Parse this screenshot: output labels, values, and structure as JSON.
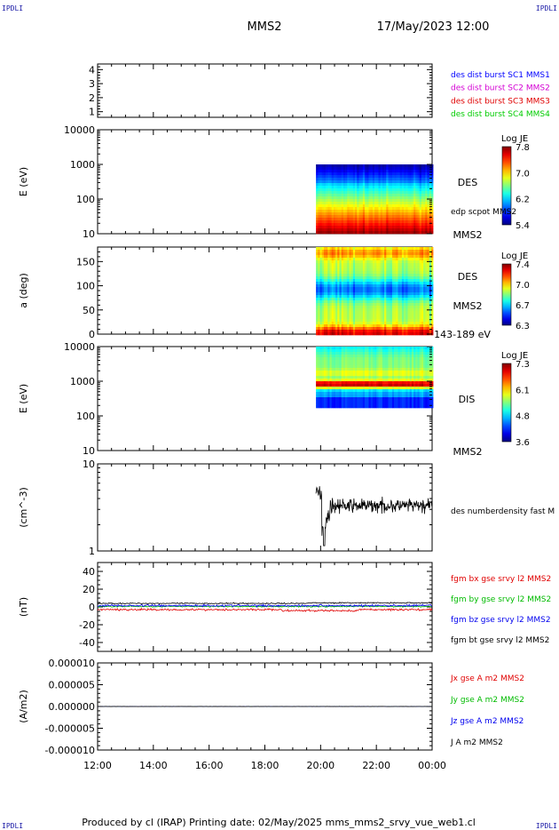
{
  "header": {
    "corner_tl": "IPDLI",
    "corner_tr": "IPDLI",
    "corner_bl": "IPDLI",
    "corner_br": "IPDLI",
    "title": "MMS2",
    "datetime": "17/May/2023 12:00"
  },
  "footer": {
    "text": "Produced by cl (IRAP)   Printing date: 02/May/2025   mms_mms2_srvy_vue_web1.cl"
  },
  "colors": {
    "mms1": "#0000ff",
    "mms2": "#d400d4",
    "mms3": "#e00000",
    "mms4": "#00cc00",
    "bx": "#e00000",
    "by": "#00bb00",
    "bz": "#0000ee",
    "bt": "#000000"
  },
  "chart_data": [
    {
      "type": "line",
      "ylim": [
        0.6,
        4.4
      ],
      "yticks": [
        "1",
        "2",
        "3",
        "4"
      ],
      "legend": [
        {
          "label": "des dist burst SC1 MMS1",
          "color": "#0000ff"
        },
        {
          "label": "des dist burst SC2 MMS2",
          "color": "#d400d4"
        },
        {
          "label": "des dist burst SC3 MMS3",
          "color": "#e00000"
        },
        {
          "label": "des dist burst SC4 MMS4",
          "color": "#00cc00"
        }
      ]
    },
    {
      "type": "heatmap",
      "ylabel": "E (eV)",
      "yticks": [
        "10",
        "100",
        "1000",
        "10000"
      ],
      "data_start": "19:50",
      "data_end": "00:00",
      "label": "DES",
      "extra_label": "edp scpot MMS2",
      "bottom_right": "MMS2",
      "colorbar": {
        "title": "Log JE",
        "ticks": [
          "7.8",
          "7.0",
          "6.2",
          "5.4"
        ]
      }
    },
    {
      "type": "heatmap",
      "ylabel": "a (deg)",
      "yticks": [
        "0",
        "50",
        "100",
        "150"
      ],
      "data_start": "19:50",
      "data_end": "00:00",
      "label": "DES",
      "label2": "MMS2",
      "bottom_right": "143-189 eV",
      "colorbar": {
        "title": "Log JE",
        "ticks": [
          "7.4",
          "7.0",
          "6.7",
          "6.3"
        ]
      }
    },
    {
      "type": "heatmap",
      "ylabel": "E (eV)",
      "yticks": [
        "10",
        "100",
        "1000",
        "10000"
      ],
      "data_start": "19:50",
      "data_end": "00:00",
      "label": "DIS",
      "bottom_right": "MMS2",
      "colorbar": {
        "title": "Log JE",
        "ticks": [
          "7.3",
          "6.1",
          "4.8",
          "3.6"
        ]
      }
    },
    {
      "type": "line",
      "ylabel": "(cm^-3)",
      "yticks": [
        "1",
        "10"
      ],
      "data_start": "19:50",
      "data_end": "00:00",
      "legend": [
        {
          "label": "des numberdensity fast M",
          "color": "#000000"
        }
      ]
    },
    {
      "type": "line",
      "ylabel": "(nT)",
      "ylim": [
        -50,
        50
      ],
      "yticks": [
        "40",
        "20",
        "0",
        "-20",
        "-40"
      ],
      "series": [
        {
          "name": "fgm bx gse srvy l2 MMS2",
          "color": "#e00000"
        },
        {
          "name": "fgm by gse srvy l2 MMS2",
          "color": "#00bb00"
        },
        {
          "name": "fgm bz gse srvy l2 MMS2",
          "color": "#0000ee"
        },
        {
          "name": "fgm bt gse srvy l2 MMS2",
          "color": "#000000"
        }
      ]
    },
    {
      "type": "line",
      "ylabel": "(A/m2)",
      "ylim": [
        -1e-05,
        1e-05
      ],
      "yticks": [
        "0.000010",
        "0.000005",
        "0.000000",
        "-0.000005",
        "-0.000010"
      ],
      "series": [
        {
          "name": "Jx gse A m2 MMS2",
          "color": "#e00000"
        },
        {
          "name": "Jy gse A m2 MMS2",
          "color": "#00bb00"
        },
        {
          "name": "Jz gse A m2 MMS2",
          "color": "#0000ee"
        },
        {
          "name": "J A m2 MMS2",
          "color": "#000000"
        }
      ],
      "xticks": [
        "12:00",
        "14:00",
        "16:00",
        "18:00",
        "20:00",
        "22:00",
        "00:00"
      ]
    }
  ]
}
